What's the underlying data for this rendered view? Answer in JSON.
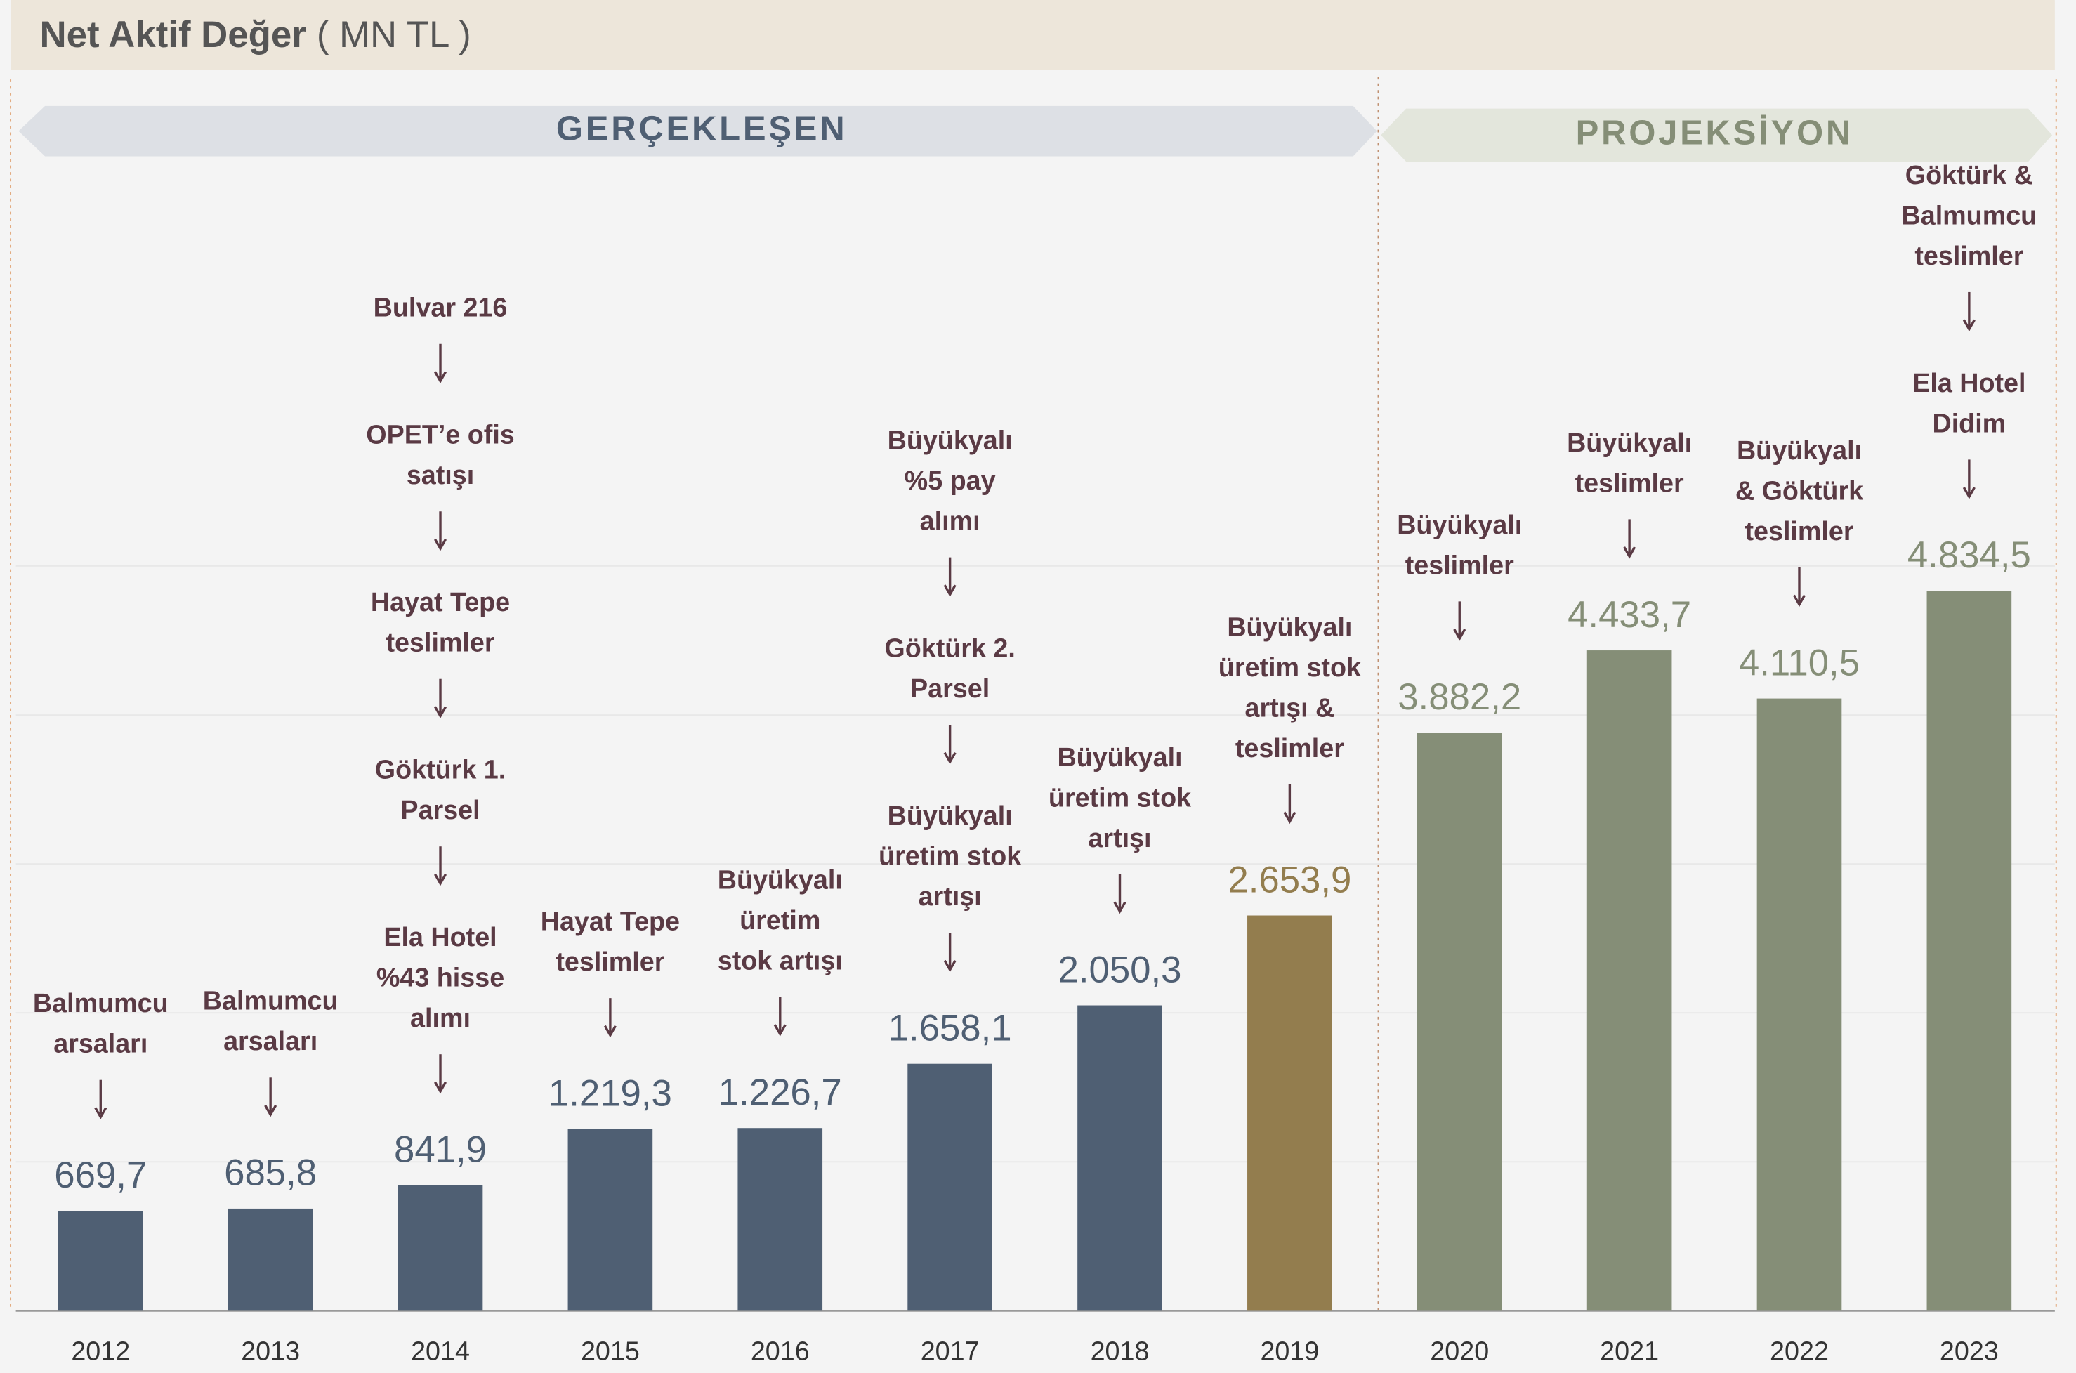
{
  "chart_data": {
    "type": "bar",
    "title": "Net Aktif Değer",
    "subtitle": "( MN TL )",
    "sections": [
      "GERÇEKLEŞEN",
      "PROJEKSİYON"
    ],
    "categories": [
      "2012",
      "2013",
      "2014",
      "2015",
      "2016",
      "2017",
      "2018",
      "2019",
      "2020",
      "2021",
      "2022",
      "2023"
    ],
    "values": [
      669.7,
      685.8,
      841.9,
      1219.3,
      1226.7,
      1658.1,
      2050.3,
      2653.9,
      3882.2,
      4433.7,
      4110.5,
      4834.5
    ],
    "value_labels": [
      "669,7",
      "685,8",
      "841,9",
      "1.219,3",
      "1.226,7",
      "1.658,1",
      "2.050,3",
      "2.653,9",
      "3.882,2",
      "4.433,7",
      "4.110,5",
      "4.834,5"
    ],
    "colors": [
      "#4f5f73",
      "#4f5f73",
      "#4f5f73",
      "#4f5f73",
      "#4f5f73",
      "#4f5f73",
      "#4f5f73",
      "#937d4e",
      "#858e77",
      "#858e77",
      "#858e77",
      "#858e77"
    ],
    "annotations": [
      [
        [
          "Balmumcu",
          "arsaları"
        ]
      ],
      [
        [
          "Balmumcu",
          "arsaları"
        ]
      ],
      [
        [
          "Ela Hotel",
          "%43 hisse",
          "alımı"
        ],
        [
          "Göktürk 1.",
          "Parsel"
        ],
        [
          "Hayat Tepe",
          "teslimler"
        ],
        [
          "OPET’e ofis",
          "satışı"
        ],
        [
          "Bulvar 216"
        ]
      ],
      [
        [
          "Hayat Tepe",
          "teslimler"
        ]
      ],
      [
        [
          "Büyükyalı",
          "üretim",
          "stok artışı"
        ]
      ],
      [
        [
          "Büyükyalı",
          "üretim stok",
          "artışı"
        ],
        [
          "Göktürk 2.",
          "Parsel"
        ],
        [
          "Büyükyalı",
          "%5 pay",
          "alımı"
        ]
      ],
      [
        [
          "Büyükyalı",
          "üretim stok",
          "artışı"
        ]
      ],
      [
        [
          "Büyükyalı",
          "üretim stok",
          "artışı &",
          "teslimler"
        ]
      ],
      [
        [
          "Büyükyalı",
          "teslimler"
        ]
      ],
      [
        [
          "Büyükyalı",
          "teslimler"
        ]
      ],
      [
        [
          "Büyükyalı",
          "& Göktürk",
          "teslimler"
        ]
      ],
      [
        [
          "Ela Hotel",
          "Didim"
        ],
        [
          "Göktürk &",
          "Balmumcu",
          "teslimler"
        ]
      ]
    ],
    "ylim": [
      0,
      5000
    ],
    "yticks": [
      0,
      1000,
      2000,
      3000,
      4000,
      5000
    ],
    "grid": true
  }
}
